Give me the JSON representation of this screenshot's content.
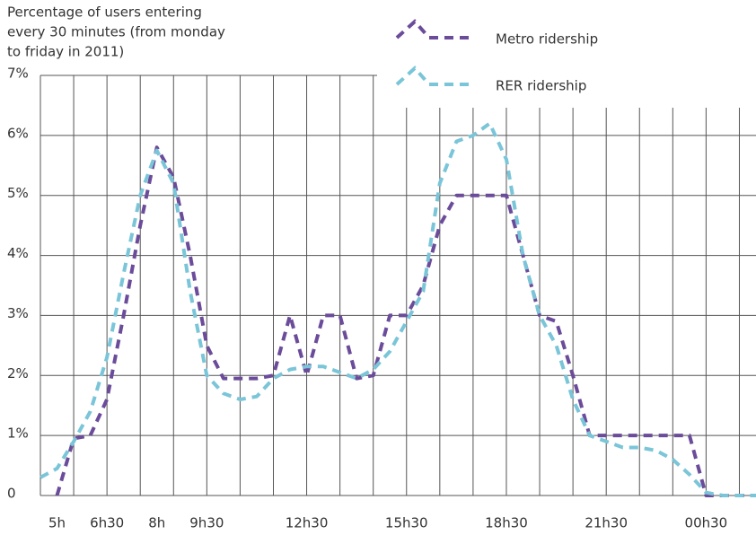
{
  "chart_data": {
    "type": "line",
    "title": [
      "Percentage of users entering",
      "every 30 minutes (from monday",
      "to friday in 2011)"
    ],
    "categories": [
      null,
      "5h",
      null,
      null,
      "6h30",
      null,
      null,
      "8h",
      null,
      null,
      "9h30",
      null,
      null,
      null,
      null,
      null,
      "12h30",
      null,
      null,
      null,
      null,
      null,
      "15h30",
      null,
      null,
      null,
      null,
      null,
      "18h30",
      null,
      null,
      null,
      null,
      null,
      "21h30",
      null,
      null,
      null,
      null,
      null,
      "00h30",
      null,
      null,
      null
    ],
    "series": [
      {
        "name": "Metro ridership",
        "color": "#6b4c9a",
        "values": [
          null,
          0,
          0.95,
          1.0,
          1.6,
          3.0,
          4.5,
          5.8,
          5.3,
          4.0,
          2.5,
          1.95,
          1.95,
          1.95,
          2.0,
          3.0,
          2.0,
          3.0,
          3.0,
          1.95,
          2.0,
          3.0,
          3.0,
          3.5,
          4.5,
          5.0,
          5.0,
          5.0,
          5.0,
          4.0,
          3.0,
          2.9,
          2.0,
          1.0,
          1.0,
          1.0,
          1.0,
          1.0,
          1.0,
          1.0,
          0,
          0,
          0,
          0
        ]
      },
      {
        "name": "RER ridership",
        "color": "#7ac5d8",
        "values": [
          0.3,
          0.45,
          0.9,
          1.4,
          2.3,
          3.7,
          5.0,
          5.75,
          5.2,
          3.4,
          2.0,
          1.7,
          1.6,
          1.65,
          1.95,
          2.1,
          2.15,
          2.15,
          2.05,
          1.95,
          2.1,
          2.4,
          2.9,
          3.4,
          5.2,
          5.9,
          6.0,
          6.2,
          5.6,
          4.0,
          3.0,
          2.5,
          1.6,
          1.0,
          0.9,
          0.8,
          0.8,
          0.75,
          0.6,
          0.35,
          0.05,
          0,
          0,
          0
        ]
      }
    ],
    "ylim": [
      0,
      7
    ],
    "yticks": [
      0,
      {
        "value": 1,
        "label": "1%"
      },
      {
        "value": 2,
        "label": "2%"
      },
      {
        "value": 3,
        "label": "3%"
      },
      {
        "value": 4,
        "label": "4%"
      },
      {
        "value": 5,
        "label": "5%"
      },
      {
        "value": 6,
        "label": "6%"
      },
      {
        "value": 7,
        "label": "7%"
      }
    ],
    "grid": true,
    "legend": "top-right"
  }
}
